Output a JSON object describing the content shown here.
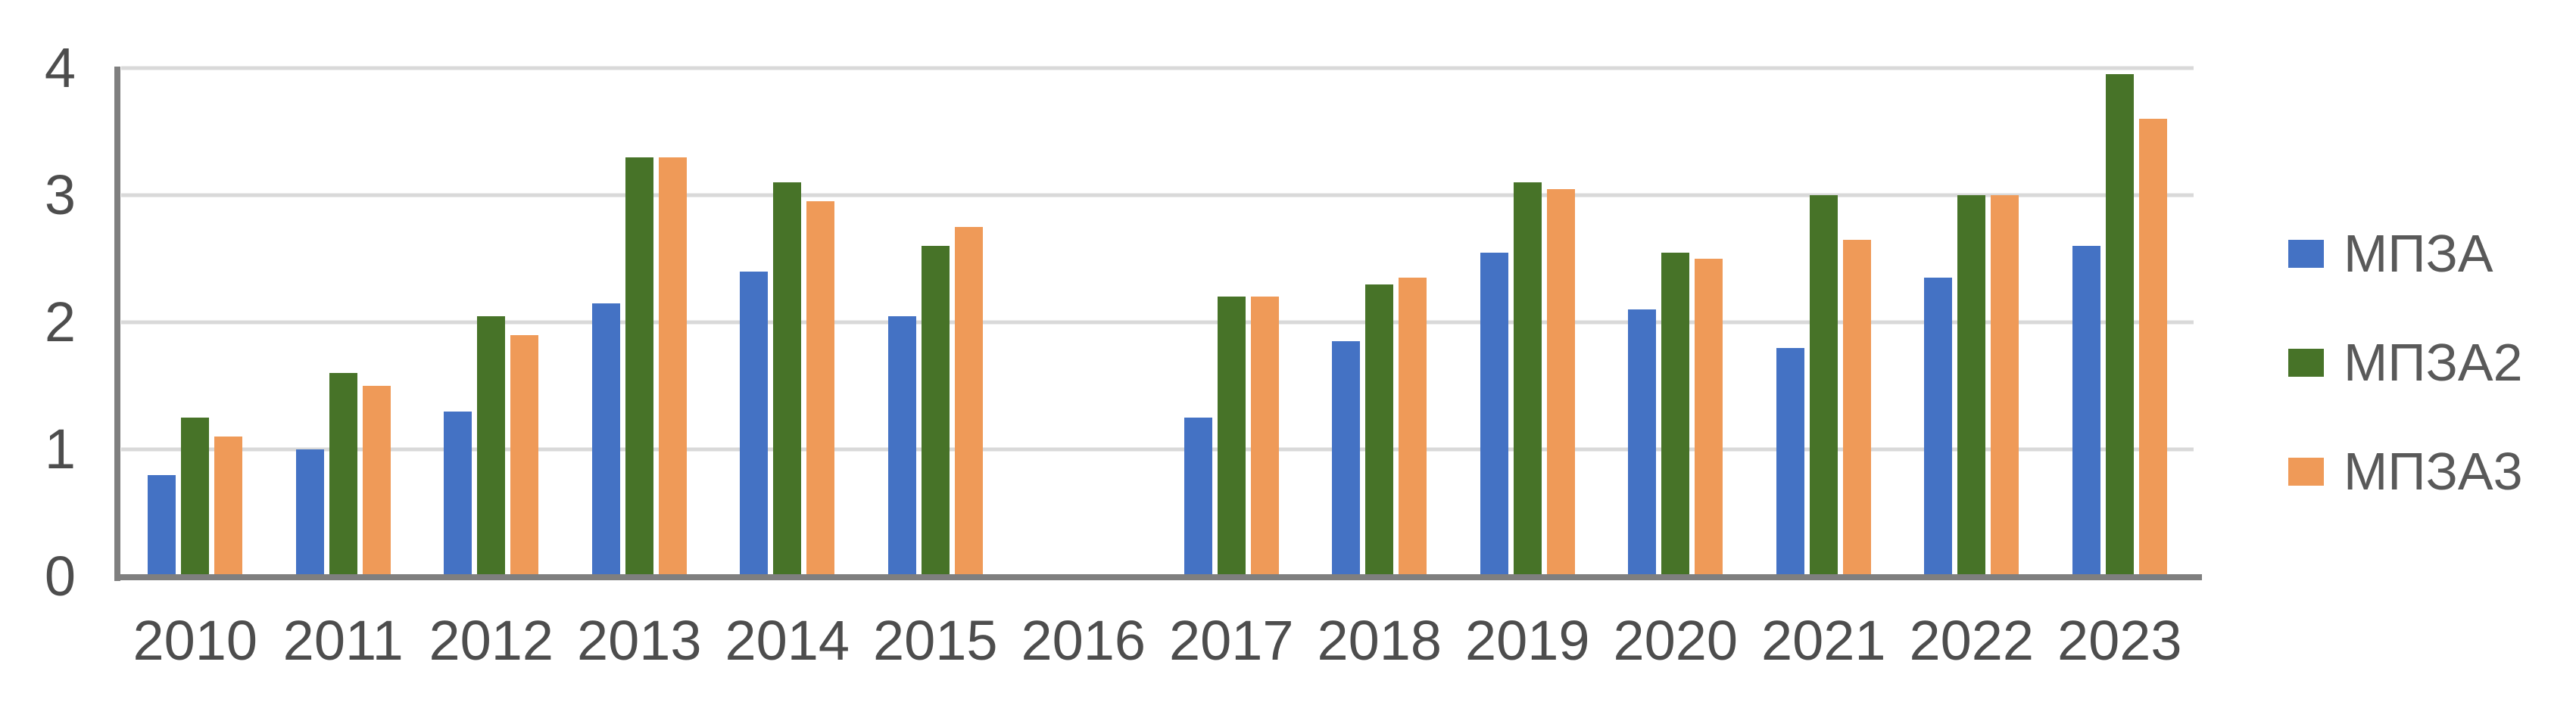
{
  "chart_data": {
    "type": "bar",
    "title": "",
    "xlabel": "",
    "ylabel": "",
    "categories": [
      "2010",
      "2011",
      "2012",
      "2013",
      "2014",
      "2015",
      "2016",
      "2017",
      "2018",
      "2019",
      "2020",
      "2021",
      "2022",
      "2023"
    ],
    "series": [
      {
        "name": "МПЗА",
        "color": "#4472C4",
        "values": [
          0.8,
          1.0,
          1.3,
          2.15,
          2.4,
          2.05,
          null,
          1.25,
          1.85,
          2.55,
          2.1,
          1.8,
          2.35,
          2.6
        ]
      },
      {
        "name": "МПЗА2",
        "color": "#477328",
        "values": [
          1.25,
          1.6,
          2.05,
          3.3,
          3.1,
          2.6,
          null,
          2.2,
          2.3,
          3.1,
          2.55,
          3.0,
          3.0,
          3.95
        ]
      },
      {
        "name": "МПЗА3",
        "color": "#EF9A58",
        "values": [
          1.1,
          1.5,
          1.9,
          3.3,
          2.95,
          2.75,
          null,
          2.2,
          2.35,
          3.05,
          2.5,
          2.65,
          3.0,
          3.6
        ]
      }
    ],
    "ylim": [
      0,
      4
    ],
    "yticks": [
      0,
      1,
      2,
      3,
      4
    ],
    "grid": true,
    "legend_position": "right"
  },
  "style": {
    "axis_line_color": "#7F7F7F",
    "gridline_color": "#D9D9D9",
    "tick_label_color": "#4D4D4D",
    "legend_text_color": "#595959",
    "background": "#FFFFFF"
  }
}
